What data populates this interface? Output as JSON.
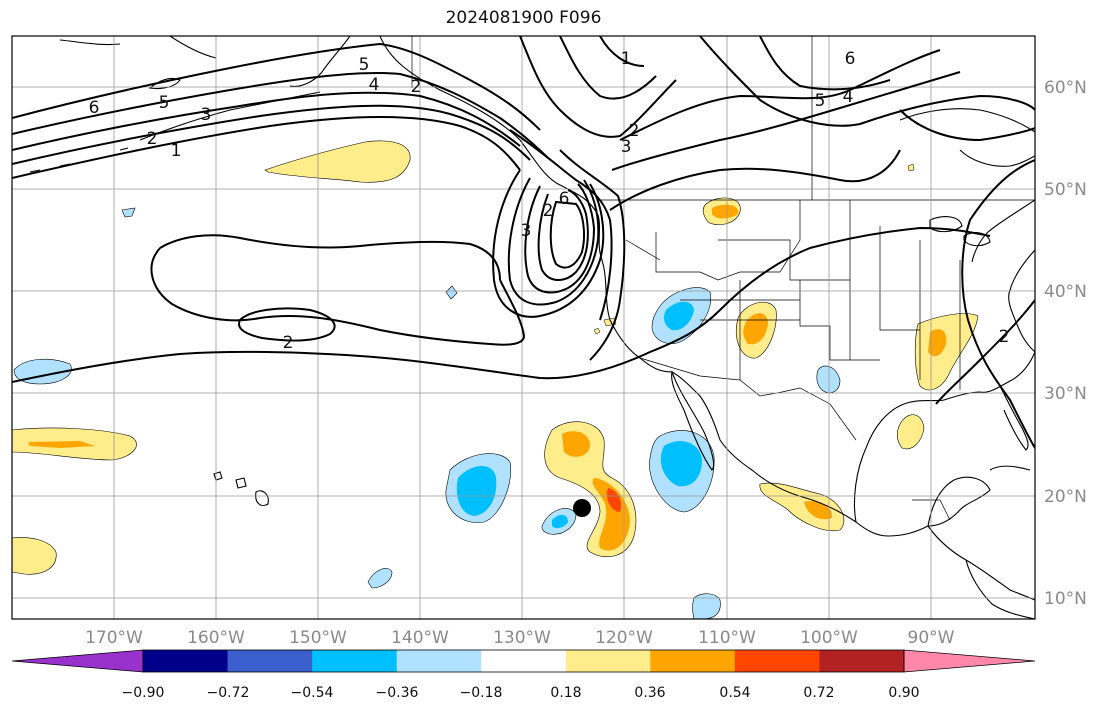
{
  "title": "2024081900 F096",
  "map": {
    "lat_ticks": [
      "60°N",
      "50°N",
      "40°N",
      "30°N",
      "20°N",
      "10°N"
    ],
    "lon_ticks": [
      "170°W",
      "160°W",
      "150°W",
      "140°W",
      "130°W",
      "120°W",
      "110°W",
      "100°W",
      "90°W"
    ],
    "contour_labels": [
      "6",
      "5",
      "3",
      "2",
      "1",
      "2",
      "6",
      "5",
      "4",
      "3",
      "2",
      "1",
      "2",
      "6",
      "5",
      "4",
      "3",
      "2",
      "2"
    ],
    "storm_marker": "tropical-cyclone-center"
  },
  "colorbar": {
    "tick_labels": [
      "−0.90",
      "−0.72",
      "−0.54",
      "−0.36",
      "−0.18",
      "0.18",
      "0.36",
      "0.54",
      "0.72",
      "0.90"
    ],
    "colors": [
      "#9932cc",
      "#00008b",
      "#3a5fcd",
      "#00bfff",
      "#b0e2ff",
      "#ffffff",
      "#ffec8b",
      "#ffa500",
      "#ff4500",
      "#b22222",
      "#ff88aa"
    ]
  },
  "colors": {
    "land_line": "#000000",
    "grid": "#999999",
    "contour": "#000000"
  }
}
